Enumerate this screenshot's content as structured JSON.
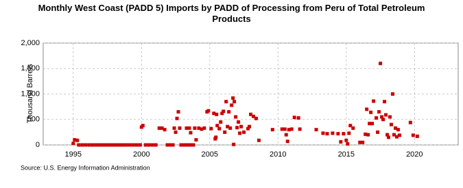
{
  "chart_data": {
    "type": "scatter",
    "title": "Monthly West Coast (PADD 5) Imports by PADD of Processing from Peru of Total Petroleum Products",
    "y_label": "Thousand Barrels",
    "source": "Source: U.S. Energy Information Administration",
    "color": "#cc0000",
    "grid": true,
    "xlim": [
      1992.8,
      2023.2
    ],
    "xticks": [
      1995,
      2000,
      2005,
      2010,
      2015,
      2020
    ],
    "ylim": [
      0,
      2000
    ],
    "yticks": [
      0,
      500,
      {
        "value": 1000,
        "label": "1,000"
      },
      {
        "value": 1500,
        "label": "1,500"
      },
      {
        "value": 2000,
        "label": "2,000"
      }
    ],
    "x": [
      1995.0,
      1995.1,
      1995.3,
      1995.4,
      1995.65,
      1995.9,
      1996.15,
      1996.4,
      1996.65,
      1996.9,
      1997.15,
      1997.4,
      1997.65,
      1997.9,
      1998.15,
      1998.4,
      1998.65,
      1998.9,
      1999.15,
      1999.4,
      1999.65,
      1999.9,
      2000.0,
      2000.1,
      2000.3,
      2000.55,
      2000.8,
      2001.05,
      2001.3,
      2001.5,
      2001.7,
      2001.9,
      2002.1,
      2002.3,
      2002.4,
      2002.5,
      2002.6,
      2002.7,
      2002.8,
      2002.9,
      2003.1,
      2003.2,
      2003.3,
      2003.4,
      2003.5,
      2003.6,
      2003.65,
      2003.8,
      2003.9,
      2004.0,
      2004.2,
      2004.4,
      2004.6,
      2004.8,
      2004.9,
      2005.1,
      2005.3,
      2005.4,
      2005.45,
      2005.5,
      2005.55,
      2005.7,
      2005.8,
      2005.9,
      2006.0,
      2006.1,
      2006.2,
      2006.3,
      2006.4,
      2006.5,
      2006.6,
      2006.7,
      2006.75,
      2006.8,
      2006.9,
      2007.0,
      2007.1,
      2007.2,
      2007.3,
      2007.5,
      2007.8,
      2007.9,
      2008.0,
      2008.2,
      2008.4,
      2008.6,
      2009.6,
      2010.3,
      2010.5,
      2010.6,
      2010.7,
      2010.8,
      2011.0,
      2011.2,
      2011.5,
      2011.6,
      2012.8,
      2013.3,
      2013.6,
      2014.0,
      2014.4,
      2014.6,
      2014.8,
      2015.0,
      2015.1,
      2015.2,
      2015.3,
      2015.5,
      2016.0,
      2016.2,
      2016.4,
      2016.5,
      2016.6,
      2016.7,
      2016.8,
      2016.9,
      2017.0,
      2017.2,
      2017.3,
      2017.4,
      2017.5,
      2017.6,
      2017.7,
      2017.8,
      2017.9,
      2018.0,
      2018.1,
      2018.2,
      2018.3,
      2018.4,
      2018.5,
      2018.6,
      2018.7,
      2018.8,
      2018.9,
      2019.7,
      2019.9,
      2020.2
    ],
    "values": [
      30,
      100,
      90,
      0,
      0,
      0,
      0,
      0,
      0,
      0,
      0,
      0,
      0,
      0,
      0,
      0,
      0,
      0,
      0,
      0,
      0,
      0,
      350,
      380,
      0,
      0,
      0,
      0,
      330,
      330,
      300,
      0,
      0,
      0,
      330,
      250,
      520,
      650,
      330,
      0,
      0,
      0,
      330,
      0,
      330,
      240,
      0,
      0,
      330,
      100,
      330,
      310,
      330,
      650,
      670,
      320,
      620,
      120,
      150,
      600,
      380,
      320,
      450,
      620,
      660,
      250,
      850,
      360,
      650,
      330,
      780,
      920,
      10,
      850,
      550,
      340,
      450,
      230,
      360,
      250,
      320,
      360,
      600,
      560,
      520,
      90,
      300,
      310,
      310,
      200,
      70,
      300,
      310,
      540,
      530,
      310,
      300,
      230,
      220,
      230,
      220,
      60,
      220,
      90,
      20,
      230,
      380,
      330,
      50,
      50,
      210,
      700,
      200,
      420,
      640,
      420,
      860,
      530,
      250,
      650,
      1600,
      550,
      500,
      850,
      590,
      200,
      150,
      550,
      400,
      1000,
      200,
      330,
      160,
      300,
      190,
      440,
      190,
      170
    ]
  }
}
